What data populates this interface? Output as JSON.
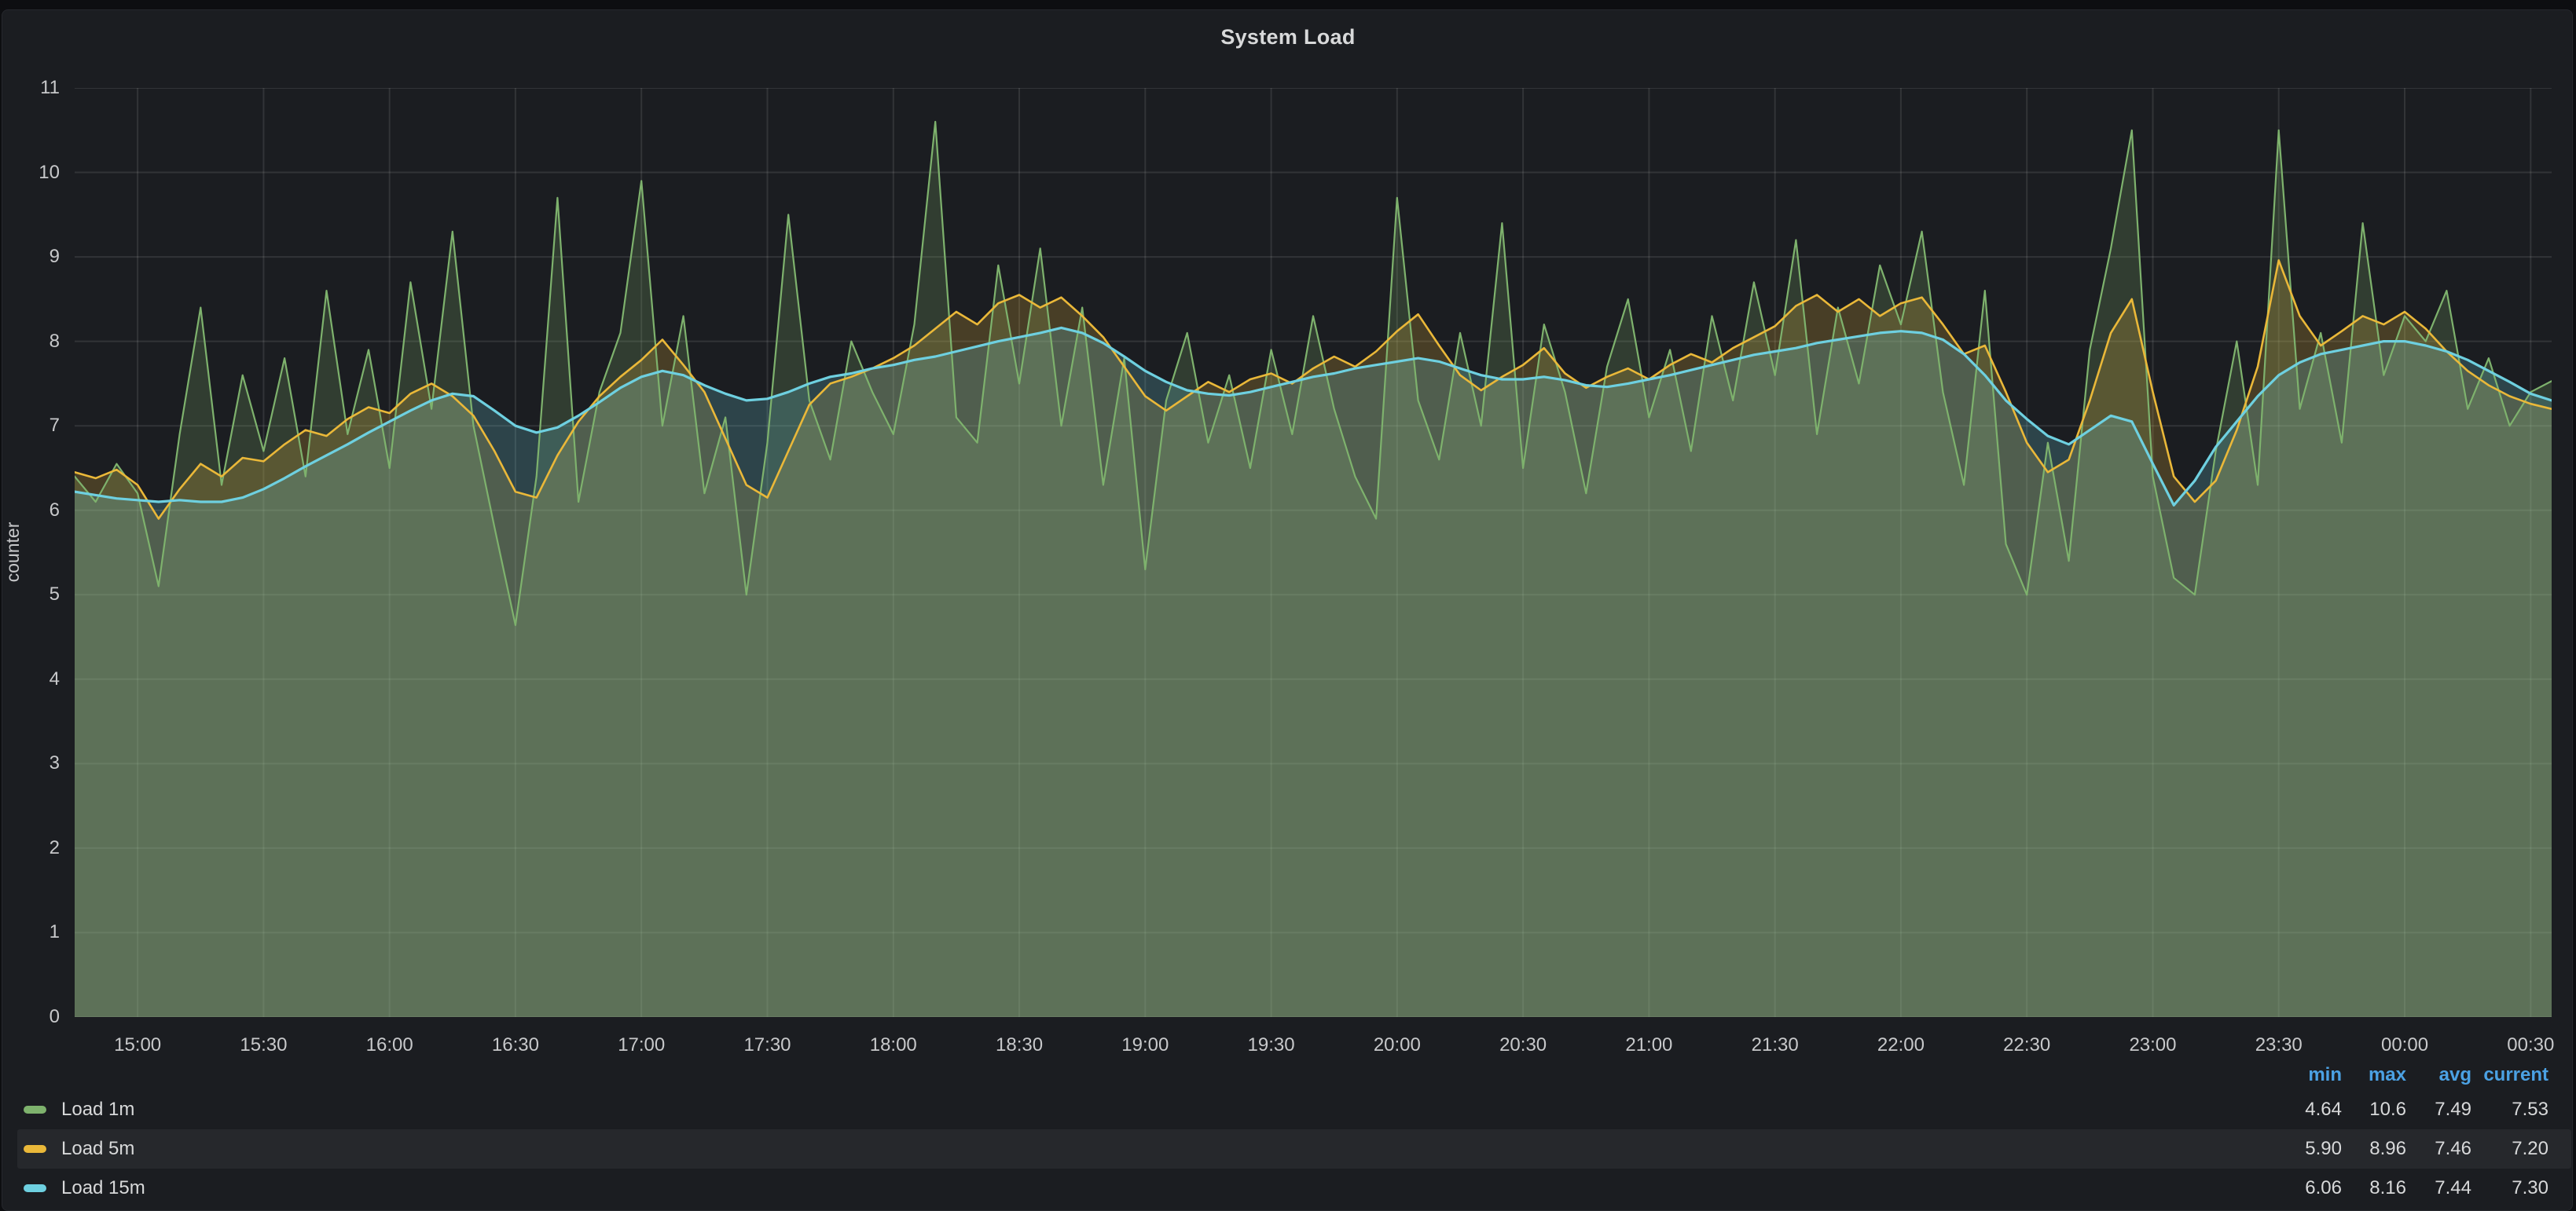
{
  "panel": {
    "title": "System Load"
  },
  "chart_data": {
    "type": "area",
    "title": "System Load",
    "xlabel": "",
    "ylabel": "counter",
    "ylim": [
      0,
      11
    ],
    "grid": true,
    "legend_position": "bottom",
    "x_start": "14:45",
    "x_step_minutes": 5,
    "y_ticks": [
      0,
      1,
      2,
      3,
      4,
      5,
      6,
      7,
      8,
      9,
      10,
      11
    ],
    "x_ticks": [
      {
        "i": 3,
        "label": "15:00"
      },
      {
        "i": 9,
        "label": "15:30"
      },
      {
        "i": 15,
        "label": "16:00"
      },
      {
        "i": 21,
        "label": "16:30"
      },
      {
        "i": 27,
        "label": "17:00"
      },
      {
        "i": 33,
        "label": "17:30"
      },
      {
        "i": 39,
        "label": "18:00"
      },
      {
        "i": 45,
        "label": "18:30"
      },
      {
        "i": 51,
        "label": "19:00"
      },
      {
        "i": 57,
        "label": "19:30"
      },
      {
        "i": 63,
        "label": "20:00"
      },
      {
        "i": 69,
        "label": "20:30"
      },
      {
        "i": 75,
        "label": "21:00"
      },
      {
        "i": 81,
        "label": "21:30"
      },
      {
        "i": 87,
        "label": "22:00"
      },
      {
        "i": 93,
        "label": "22:30"
      },
      {
        "i": 99,
        "label": "23:00"
      },
      {
        "i": 105,
        "label": "23:30"
      },
      {
        "i": 111,
        "label": "00:00"
      },
      {
        "i": 117,
        "label": "00:30"
      }
    ],
    "legend": {
      "stat_headers": [
        "min",
        "max",
        "avg",
        "current"
      ],
      "header_color": "#4ba1e3"
    },
    "fill_opacity": 0.22,
    "series": [
      {
        "name": "Load 1m",
        "color": "#7EB26D",
        "line_width": 2.2,
        "highlighted": false,
        "stats": {
          "min": "4.64",
          "max": "10.6",
          "avg": "7.49",
          "current": "7.53"
        },
        "values": [
          6.4,
          6.1,
          6.55,
          6.2,
          5.1,
          6.9,
          8.4,
          6.3,
          7.6,
          6.7,
          7.8,
          6.4,
          8.6,
          6.9,
          7.9,
          6.5,
          8.7,
          7.2,
          9.3,
          7.0,
          5.8,
          4.64,
          6.4,
          9.7,
          6.1,
          7.4,
          8.1,
          9.9,
          7.0,
          8.3,
          6.2,
          7.1,
          5.0,
          6.8,
          9.5,
          7.3,
          6.6,
          8.0,
          7.4,
          6.9,
          8.2,
          10.6,
          7.1,
          6.8,
          8.9,
          7.5,
          9.1,
          7.0,
          8.4,
          6.3,
          7.8,
          5.3,
          7.3,
          8.1,
          6.8,
          7.6,
          6.5,
          7.9,
          6.9,
          8.3,
          7.2,
          6.4,
          5.9,
          9.7,
          7.3,
          6.6,
          8.1,
          7.0,
          9.4,
          6.5,
          8.2,
          7.4,
          6.2,
          7.7,
          8.5,
          7.1,
          7.9,
          6.7,
          8.3,
          7.3,
          8.7,
          7.6,
          9.2,
          6.9,
          8.4,
          7.5,
          8.9,
          8.2,
          9.3,
          7.4,
          6.3,
          8.6,
          5.6,
          5.0,
          6.8,
          5.4,
          7.9,
          9.1,
          10.5,
          6.4,
          5.2,
          5.0,
          6.7,
          8.0,
          6.3,
          10.5,
          7.2,
          8.1,
          6.8,
          9.4,
          7.6,
          8.3,
          8.0,
          8.6,
          7.2,
          7.8,
          7.0,
          7.4,
          7.53
        ]
      },
      {
        "name": "Load 5m",
        "color": "#EAB839",
        "line_width": 2.6,
        "highlighted": true,
        "stats": {
          "min": "5.90",
          "max": "8.96",
          "avg": "7.46",
          "current": "7.20"
        },
        "values": [
          6.45,
          6.38,
          6.48,
          6.3,
          5.9,
          6.25,
          6.55,
          6.4,
          6.62,
          6.58,
          6.78,
          6.95,
          6.88,
          7.08,
          7.22,
          7.15,
          7.38,
          7.5,
          7.35,
          7.12,
          6.7,
          6.22,
          6.15,
          6.65,
          7.05,
          7.35,
          7.58,
          7.78,
          8.02,
          7.72,
          7.4,
          6.85,
          6.3,
          6.15,
          6.7,
          7.25,
          7.5,
          7.58,
          7.68,
          7.8,
          7.95,
          8.15,
          8.35,
          8.2,
          8.45,
          8.55,
          8.4,
          8.52,
          8.3,
          8.05,
          7.7,
          7.35,
          7.18,
          7.35,
          7.52,
          7.4,
          7.55,
          7.62,
          7.5,
          7.68,
          7.82,
          7.7,
          7.88,
          8.12,
          8.32,
          7.95,
          7.6,
          7.42,
          7.58,
          7.72,
          7.92,
          7.62,
          7.45,
          7.58,
          7.68,
          7.55,
          7.72,
          7.85,
          7.75,
          7.92,
          8.05,
          8.18,
          8.42,
          8.55,
          8.35,
          8.5,
          8.3,
          8.45,
          8.52,
          8.2,
          7.85,
          7.95,
          7.4,
          6.8,
          6.45,
          6.6,
          7.3,
          8.1,
          8.5,
          7.4,
          6.4,
          6.1,
          6.35,
          6.95,
          7.7,
          8.96,
          8.3,
          7.95,
          8.12,
          8.3,
          8.2,
          8.35,
          8.15,
          7.88,
          7.65,
          7.48,
          7.35,
          7.26,
          7.2
        ]
      },
      {
        "name": "Load 15m",
        "color": "#6ED0E0",
        "line_width": 3.2,
        "highlighted": false,
        "stats": {
          "min": "6.06",
          "max": "8.16",
          "avg": "7.44",
          "current": "7.30"
        },
        "values": [
          6.22,
          6.18,
          6.14,
          6.12,
          6.1,
          6.12,
          6.1,
          6.1,
          6.15,
          6.25,
          6.38,
          6.52,
          6.65,
          6.78,
          6.92,
          7.05,
          7.18,
          7.3,
          7.38,
          7.35,
          7.18,
          7.0,
          6.92,
          6.98,
          7.12,
          7.28,
          7.45,
          7.58,
          7.65,
          7.6,
          7.48,
          7.38,
          7.3,
          7.32,
          7.4,
          7.5,
          7.58,
          7.62,
          7.68,
          7.72,
          7.78,
          7.82,
          7.88,
          7.94,
          8.0,
          8.05,
          8.1,
          8.16,
          8.1,
          7.98,
          7.82,
          7.65,
          7.52,
          7.42,
          7.38,
          7.36,
          7.4,
          7.46,
          7.52,
          7.58,
          7.62,
          7.68,
          7.72,
          7.76,
          7.8,
          7.76,
          7.68,
          7.6,
          7.55,
          7.55,
          7.58,
          7.54,
          7.48,
          7.46,
          7.5,
          7.55,
          7.6,
          7.66,
          7.72,
          7.78,
          7.84,
          7.88,
          7.92,
          7.98,
          8.02,
          8.06,
          8.1,
          8.12,
          8.1,
          8.02,
          7.85,
          7.6,
          7.3,
          7.08,
          6.88,
          6.78,
          6.95,
          7.12,
          7.05,
          6.55,
          6.06,
          6.35,
          6.75,
          7.05,
          7.35,
          7.6,
          7.75,
          7.85,
          7.9,
          7.95,
          8.0,
          8.0,
          7.95,
          7.88,
          7.78,
          7.65,
          7.52,
          7.38,
          7.3
        ]
      }
    ]
  }
}
